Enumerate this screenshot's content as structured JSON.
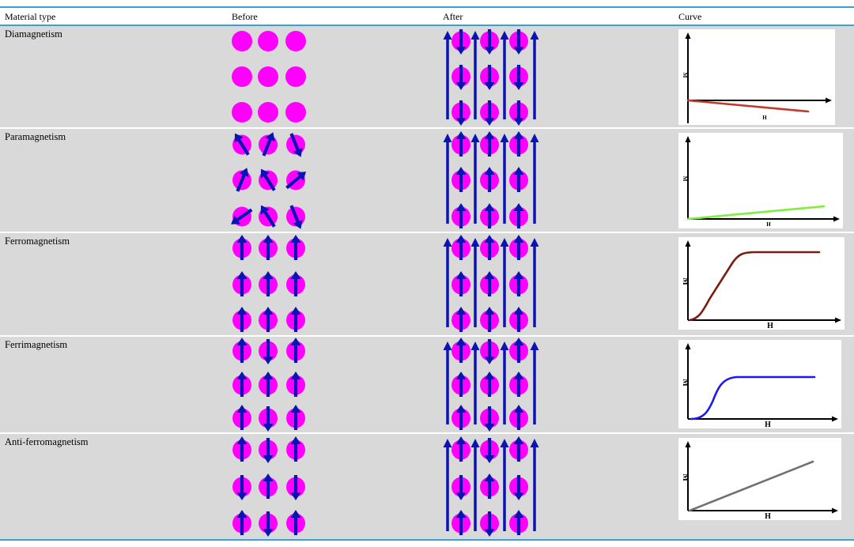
{
  "table": {
    "headers": {
      "material_type": "Material type",
      "before": "Before",
      "after": "After",
      "curve": "Curve"
    },
    "colors": {
      "rule": "#3aa0d6",
      "row_bg": "#d9d9d9",
      "atom": "#ff00ff",
      "arrow": "#0a14b4",
      "axis": "#000000"
    },
    "rows": [
      {
        "material": "Diamagnetism",
        "before": [
          [
            "none",
            "none",
            "none"
          ],
          [
            "none",
            "none",
            "none"
          ],
          [
            "none",
            "none",
            "none"
          ]
        ],
        "after": [
          [
            "down",
            "down",
            "down"
          ],
          [
            "down",
            "down",
            "down"
          ],
          [
            "down",
            "down",
            "down"
          ]
        ],
        "curve": {
          "shape": "negative-linear",
          "color": "#c0392b",
          "y_label": "M",
          "x_label": "H"
        }
      },
      {
        "material": "Paramagnetism",
        "before": [
          [
            "up-left",
            "up-right",
            "down-right"
          ],
          [
            "up-right",
            "up-left",
            "up-right-steep"
          ],
          [
            "down-left",
            "up-left",
            "down-right"
          ]
        ],
        "after": [
          [
            "up",
            "up",
            "up"
          ],
          [
            "up",
            "up",
            "up"
          ],
          [
            "up",
            "up",
            "up"
          ]
        ],
        "curve": {
          "shape": "small-linear",
          "color": "#80ee40",
          "y_label": "M",
          "x_label": "H"
        }
      },
      {
        "material": "Ferromagnetism",
        "before": [
          [
            "up",
            "up",
            "up"
          ],
          [
            "up",
            "up",
            "up"
          ],
          [
            "up",
            "up",
            "up"
          ]
        ],
        "after": [
          [
            "up",
            "up",
            "up"
          ],
          [
            "up",
            "up",
            "up"
          ],
          [
            "up",
            "up",
            "up"
          ]
        ],
        "curve": {
          "shape": "saturation",
          "color": "#7a1c14",
          "y_label": "M",
          "x_label": "H"
        }
      },
      {
        "material": "Ferrimagnetism",
        "before": [
          [
            "up",
            "down",
            "up"
          ],
          [
            "up",
            "up",
            "up"
          ],
          [
            "up",
            "down",
            "up"
          ]
        ],
        "after": [
          [
            "up",
            "down",
            "up"
          ],
          [
            "up",
            "up",
            "up"
          ],
          [
            "up",
            "down",
            "up"
          ]
        ],
        "curve": {
          "shape": "sigmoid",
          "color": "#1a1aee",
          "y_label": "M",
          "x_label": "H"
        }
      },
      {
        "material": "Anti-ferromagnetism",
        "before": [
          [
            "up",
            "down",
            "up"
          ],
          [
            "down",
            "up",
            "down"
          ],
          [
            "up",
            "down",
            "up"
          ]
        ],
        "after": [
          [
            "up",
            "down",
            "up"
          ],
          [
            "down",
            "up",
            "down"
          ],
          [
            "up",
            "down",
            "up"
          ]
        ],
        "curve": {
          "shape": "linear",
          "color": "#707070",
          "y_label": "M",
          "x_label": "H"
        }
      }
    ]
  }
}
